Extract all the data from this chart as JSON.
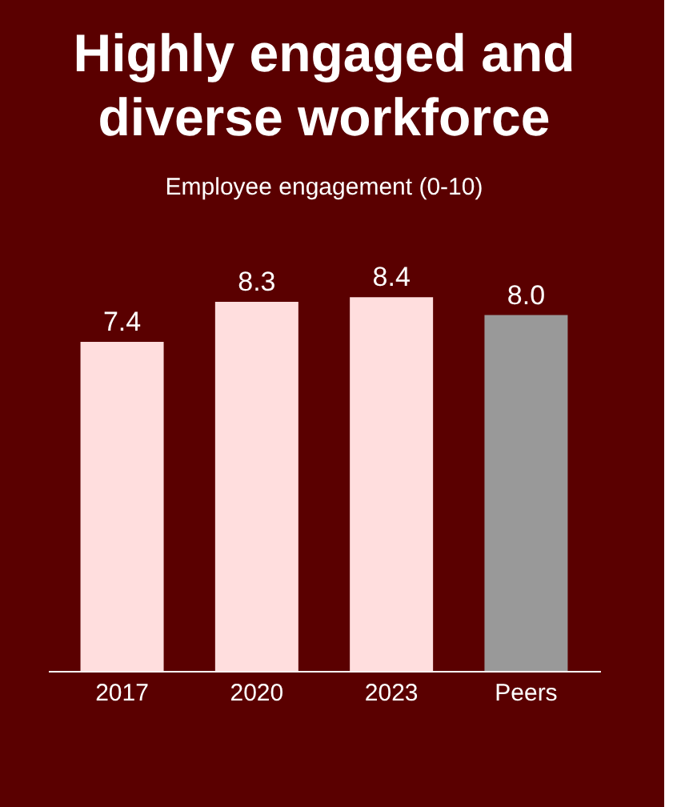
{
  "chart_data": {
    "type": "bar",
    "title": "Highly engaged and diverse workforce",
    "subtitle": "Employee engagement (0-10)",
    "categories": [
      "2017",
      "2020",
      "2023",
      "Peers"
    ],
    "values": [
      7.4,
      8.3,
      8.4,
      8.0
    ],
    "colors": [
      "#ffdede",
      "#ffdede",
      "#ffdede",
      "#999999"
    ],
    "value_labels": [
      "7.4",
      "8.3",
      "8.4",
      "8.0"
    ],
    "grid": false
  }
}
